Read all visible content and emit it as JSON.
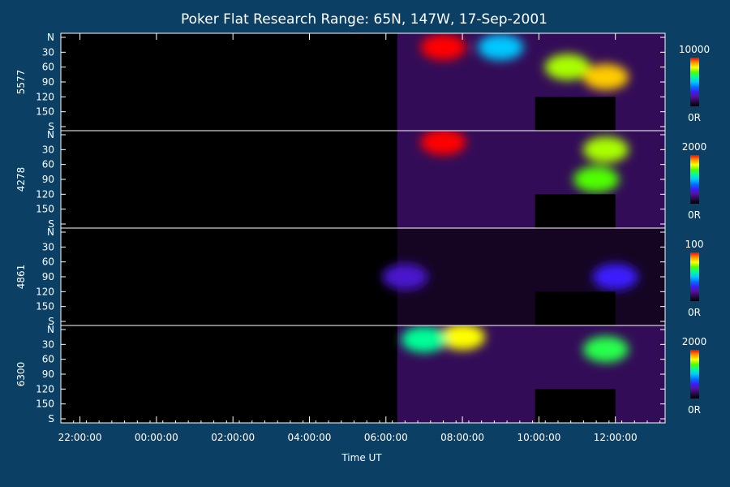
{
  "title": "Poker Flat Research Range: 65N, 147W, 17-Sep-2001",
  "colors": {
    "background": "#0b3f63",
    "panel": "#000000",
    "axis": "#ffffff",
    "colormap": [
      "#000000",
      "#2a0a46",
      "#55129a",
      "#3c1cff",
      "#0070ff",
      "#00c8ff",
      "#00ff96",
      "#50ff00",
      "#ffff00",
      "#ff9600",
      "#ff0000"
    ]
  },
  "chart_data": {
    "type": "heatmap",
    "title": "Poker Flat Research Range: 65N, 147W, 17-Sep-2001",
    "xlabel": "Time UT",
    "x_ticks": [
      "22:00:00",
      "00:00:00",
      "02:00:00",
      "04:00:00",
      "06:00:00",
      "08:00:00",
      "10:00:00",
      "12:00:00"
    ],
    "xlim_hours_since_midnight": [
      -2.5,
      13.3
    ],
    "y_ticks": [
      "N",
      "30",
      "60",
      "90",
      "120",
      "150",
      "S"
    ],
    "ylim_deg": [
      0,
      180
    ],
    "data_start_hour": 6.3,
    "data_gap_hours": [
      9.9,
      12.0
    ],
    "panels": [
      {
        "name": "5577",
        "colorbar_max": "10000",
        "colorbar_min": "0R",
        "intensity_fraction": [
          {
            "time": "07:30",
            "angle_deg": 20,
            "value": 1.0
          },
          {
            "time": "10:45",
            "angle_deg": 60,
            "value": 0.75
          },
          {
            "time": "11:45",
            "angle_deg": 80,
            "value": 0.85
          },
          {
            "time": "09:00",
            "angle_deg": 20,
            "value": 0.5
          }
        ]
      },
      {
        "name": "4278",
        "colorbar_max": "2000",
        "colorbar_min": "0R",
        "intensity_fraction": [
          {
            "time": "07:30",
            "angle_deg": 15,
            "value": 1.0
          },
          {
            "time": "11:30",
            "angle_deg": 90,
            "value": 0.7
          },
          {
            "time": "11:45",
            "angle_deg": 30,
            "value": 0.75
          }
        ]
      },
      {
        "name": "4861",
        "colorbar_max": "100",
        "colorbar_min": "0R",
        "intensity_fraction": [
          {
            "time": "06:30",
            "angle_deg": 90,
            "value": 0.25
          },
          {
            "time": "12:00",
            "angle_deg": 90,
            "value": 0.3
          }
        ]
      },
      {
        "name": "6300",
        "colorbar_max": "2000",
        "colorbar_min": "0R",
        "intensity_fraction": [
          {
            "time": "08:00",
            "angle_deg": 15,
            "value": 0.8
          },
          {
            "time": "11:45",
            "angle_deg": 40,
            "value": 0.65
          },
          {
            "time": "07:00",
            "angle_deg": 20,
            "value": 0.6
          }
        ]
      }
    ]
  }
}
